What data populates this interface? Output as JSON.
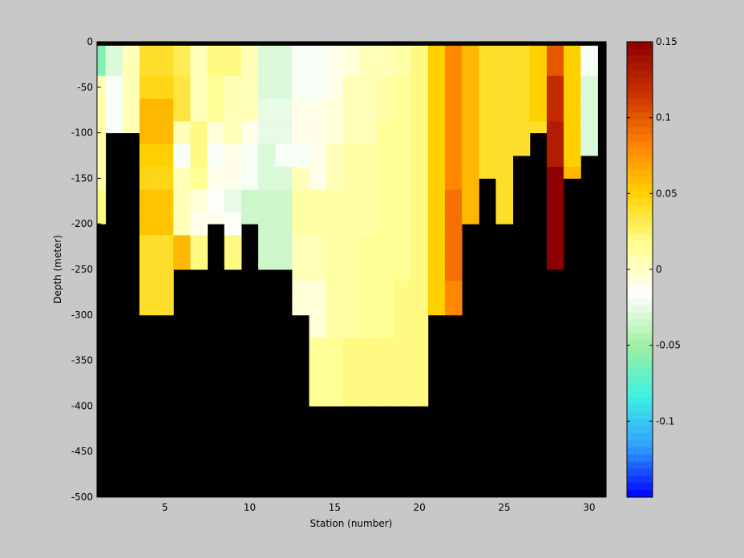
{
  "chart_data": [
    {
      "type": "heatmap",
      "title": "",
      "xlabel": "Station (number)",
      "ylabel": "Depth (meter)",
      "xlim": [
        1,
        31
      ],
      "ylim": [
        -500,
        0
      ],
      "xticks": [
        5,
        10,
        15,
        20,
        25,
        30
      ],
      "yticks": [
        0,
        -50,
        -100,
        -150,
        -200,
        -250,
        -300,
        -350,
        -400,
        -450,
        -500
      ],
      "stations": [
        1,
        2,
        3,
        4,
        5,
        6,
        7,
        8,
        9,
        10,
        11,
        12,
        13,
        14,
        15,
        16,
        17,
        18,
        19,
        20,
        21,
        22,
        23,
        24,
        25,
        26,
        27,
        28,
        29,
        30
      ],
      "depths": [
        -5,
        -25,
        -50,
        -75,
        -100,
        -125,
        -150,
        -175,
        -200,
        -225,
        -250,
        -275,
        -300,
        -350,
        -400
      ],
      "max_depth": [
        -200,
        -100,
        -100,
        -300,
        -300,
        -250,
        -250,
        -200,
        -250,
        -200,
        -250,
        -250,
        -300,
        -400,
        -400,
        -400,
        -400,
        -400,
        -400,
        -400,
        -300,
        -300,
        -200,
        -150,
        -200,
        -125,
        -100,
        -250,
        -150,
        -125
      ],
      "values": [
        [
          -0.06,
          -0.03,
          0.005,
          0.04,
          0.04,
          0.03,
          0.005,
          0.02,
          0.02,
          0.005,
          -0.03,
          -0.03,
          -0.02,
          -0.02,
          -0.01,
          -0.005,
          0.005,
          0.005,
          0.01,
          0.02,
          0.05,
          0.08,
          0.06,
          0.04,
          0.04,
          0.04,
          0.05,
          0.1,
          0.05,
          -0.02
        ],
        [
          -0.06,
          -0.03,
          0.005,
          0.04,
          0.04,
          0.03,
          0.005,
          0.02,
          0.02,
          0.005,
          -0.03,
          -0.03,
          -0.02,
          -0.02,
          -0.01,
          -0.005,
          0.005,
          0.005,
          0.01,
          0.02,
          0.05,
          0.08,
          0.06,
          0.04,
          0.04,
          0.04,
          0.05,
          0.1,
          0.05,
          -0.02
        ],
        [
          0.005,
          -0.02,
          0.005,
          0.045,
          0.045,
          0.035,
          0.005,
          0.015,
          0.005,
          0.005,
          -0.03,
          -0.03,
          -0.02,
          -0.02,
          -0.01,
          0.005,
          0.005,
          0.01,
          0.015,
          0.02,
          0.05,
          0.08,
          0.06,
          0.04,
          0.04,
          0.04,
          0.05,
          0.12,
          0.05,
          -0.03
        ],
        [
          0.01,
          -0.02,
          0.005,
          0.06,
          0.06,
          0.035,
          0.005,
          0.015,
          0.005,
          0.005,
          -0.025,
          -0.025,
          -0.01,
          -0.01,
          -0.005,
          0.005,
          0.005,
          0.01,
          0.015,
          0.02,
          0.05,
          0.08,
          0.06,
          0.04,
          0.04,
          0.04,
          0.05,
          0.12,
          0.05,
          -0.03
        ],
        [
          0.01,
          -0.02,
          0.005,
          0.06,
          0.06,
          0.005,
          0.02,
          -0.005,
          0.005,
          -0.01,
          -0.025,
          -0.025,
          -0.01,
          -0.01,
          -0.005,
          0.005,
          0.005,
          0.015,
          0.015,
          0.02,
          0.05,
          0.08,
          0.06,
          0.04,
          0.04,
          0.04,
          0.04,
          0.13,
          0.05,
          -0.03
        ],
        [
          0.01,
          0,
          0,
          0.05,
          0.05,
          -0.02,
          0.02,
          -0.02,
          -0.01,
          -0.02,
          -0.03,
          -0.02,
          -0.02,
          -0.01,
          0.005,
          0.01,
          0.01,
          0.015,
          0.015,
          0.02,
          0.05,
          0.08,
          0.06,
          0.04,
          0.04,
          0.04,
          0.04,
          0.13,
          0.05,
          -0.03
        ],
        [
          0.01,
          0,
          0,
          0.045,
          0.045,
          0.005,
          0.015,
          -0.01,
          -0.01,
          -0.02,
          -0.03,
          -0.03,
          0.005,
          -0.01,
          0.005,
          0.01,
          0.01,
          0.015,
          0.015,
          0.02,
          0.05,
          0.08,
          0.06,
          0.04,
          0.04,
          0.04,
          0.04,
          0.15,
          0.06,
          0
        ],
        [
          0.02,
          0,
          0,
          0.055,
          0.055,
          0.005,
          -0.005,
          -0.015,
          -0.025,
          -0.035,
          -0.035,
          -0.035,
          0.01,
          0.01,
          0.01,
          0.01,
          0.01,
          0.015,
          0.015,
          0.02,
          0.05,
          0.09,
          0.06,
          0.04,
          0.04,
          0.04,
          0.04,
          0.15,
          0.06,
          0
        ],
        [
          0.02,
          0,
          0,
          0.055,
          0.055,
          0.005,
          -0.01,
          -0.01,
          -0.015,
          -0.035,
          -0.035,
          -0.035,
          0.01,
          0.01,
          0.01,
          0.01,
          0.01,
          0.015,
          0.015,
          0.02,
          0.05,
          0.09,
          0.06,
          0.04,
          0.04,
          0.04,
          0.04,
          0.15,
          0.06,
          0
        ],
        [
          0,
          0,
          0,
          0.04,
          0.04,
          0.06,
          0.02,
          0,
          0.02,
          0,
          -0.035,
          -0.035,
          0.005,
          0.005,
          0.01,
          0.01,
          0.015,
          0.015,
          0.015,
          0.02,
          0.05,
          0.09,
          0.04,
          0.04,
          0.04,
          0.04,
          0.04,
          0.15,
          0.06,
          0
        ],
        [
          0,
          0,
          0,
          0.04,
          0.04,
          0.06,
          0.02,
          0,
          0.02,
          0,
          -0.035,
          -0.035,
          0.005,
          0.005,
          0.01,
          0.01,
          0.015,
          0.015,
          0.015,
          0.02,
          0.05,
          0.09,
          0.04,
          0.04,
          0.04,
          0.04,
          0.04,
          0.15,
          0.06,
          0
        ],
        [
          0,
          0,
          0,
          0.04,
          0.04,
          0,
          0,
          0,
          0,
          0,
          0,
          0,
          -0.005,
          -0.005,
          0.01,
          0.01,
          0.015,
          0.015,
          0.02,
          0.02,
          0.05,
          0.08,
          0,
          0,
          0,
          0,
          0,
          0,
          0,
          0
        ],
        [
          0,
          0,
          0,
          0.04,
          0.04,
          0,
          0,
          0,
          0,
          0,
          0,
          0,
          -0.005,
          -0.005,
          0.01,
          0.01,
          0.015,
          0.015,
          0.02,
          0.02,
          0.05,
          0.08,
          0,
          0,
          0,
          0,
          0,
          0,
          0,
          0
        ],
        [
          0,
          0,
          0,
          0,
          0,
          0,
          0,
          0,
          0,
          0,
          0,
          0,
          0,
          0.015,
          0.015,
          0.02,
          0.02,
          0.02,
          0.02,
          0.02,
          0,
          0,
          0,
          0,
          0,
          0,
          0,
          0,
          0,
          0
        ],
        [
          0,
          0,
          0,
          0,
          0,
          0,
          0,
          0,
          0,
          0,
          0,
          0,
          0,
          0.015,
          0.015,
          0.02,
          0.02,
          0.02,
          0.02,
          0.02,
          0,
          0,
          0,
          0,
          0,
          0,
          0,
          0,
          0,
          0
        ]
      ],
      "masked_color": "#000000",
      "grid": false
    },
    {
      "type": "heatmap",
      "role": "colorbar",
      "clim": [
        -0.15,
        0.15
      ],
      "ticks": [
        0.15,
        0.1,
        0.05,
        0,
        -0.05,
        -0.1
      ],
      "tick_labels": [
        "0.15",
        "0.1",
        "0.05",
        "0",
        "-0.05",
        "-0.1"
      ],
      "colormap": [
        "#0000ff",
        "#30a0ff",
        "#40f0e0",
        "#a0f0a0",
        "#ffffff",
        "#ffff90",
        "#ffd000",
        "#ff8000",
        "#c83000",
        "#8b0000"
      ]
    }
  ]
}
